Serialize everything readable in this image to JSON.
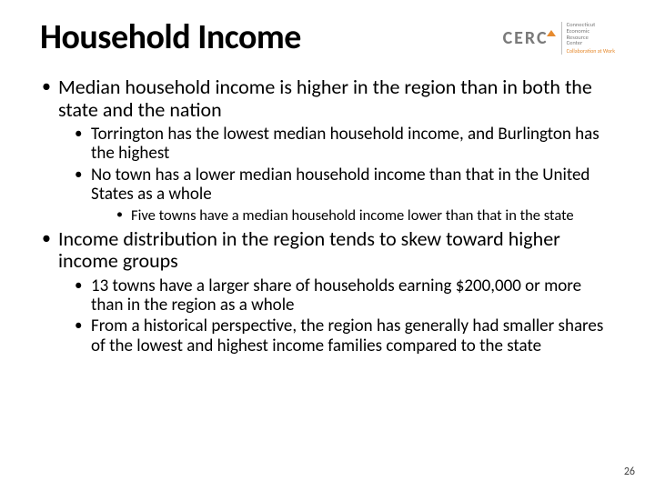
{
  "title": "Household Income",
  "logo": {
    "text": "CERC",
    "side1": "Connecticut",
    "side2": "Economic",
    "side3": "Resource",
    "side4": "Center",
    "tag": "Collaboration at Work"
  },
  "bullets": {
    "b1": "Median household income is higher in the region than in both the state and the nation",
    "b1_1": "Torrington has the lowest median household income, and Burlington has the highest",
    "b1_2": "No town has a lower median household income than that in the United States as a whole",
    "b1_2_1": "Five towns have a median household income lower than that in the state",
    "b2": "Income distribution in the region tends to skew toward higher income groups",
    "b2_1": "13 towns have a larger share of households earning $200,000 or more than in the region as a whole",
    "b2_2": "From a historical perspective, the region has generally had smaller shares of the lowest and highest income families compared to the state"
  },
  "page": "26",
  "colors": {
    "text": "#000000",
    "logo_gray": "#7a7a7a",
    "logo_orange": "#e68a2e",
    "background": "#ffffff"
  },
  "fontsize": {
    "title": 38,
    "lvl1": 22,
    "lvl2": 19,
    "lvl3": 16.5,
    "pagenum": 12
  }
}
